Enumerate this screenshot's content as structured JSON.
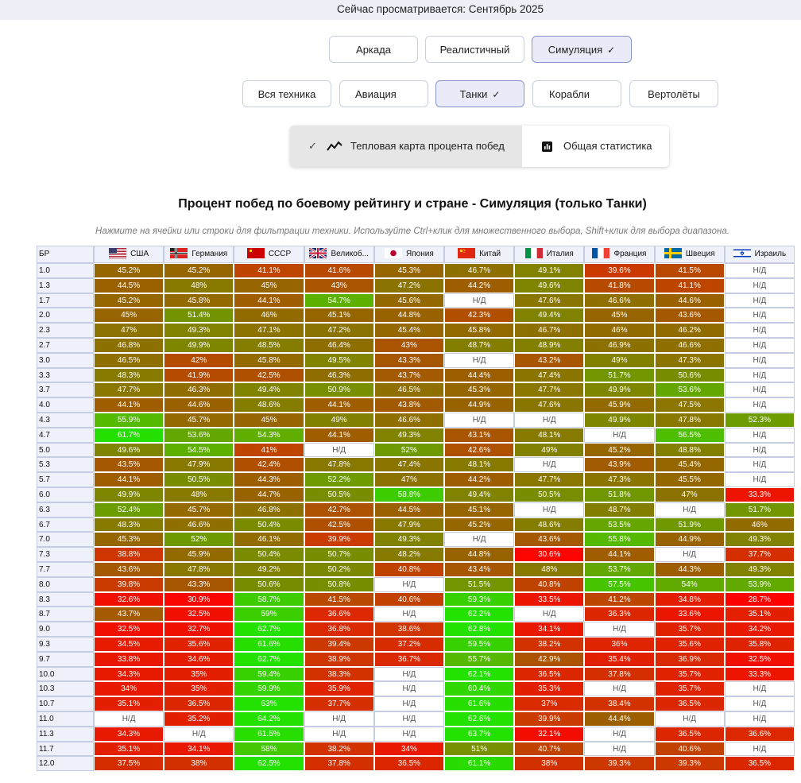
{
  "header": {
    "viewing_text": "Сейчас просматривается: Сентябрь 2025"
  },
  "modes": [
    {
      "label": "Аркада",
      "selected": false
    },
    {
      "label": "Реалистичный",
      "selected": false
    },
    {
      "label": "Симуляция",
      "selected": true
    }
  ],
  "categories": [
    {
      "label": "Вся техника",
      "selected": false
    },
    {
      "label": "Авиация",
      "selected": false
    },
    {
      "label": "Танки",
      "selected": true
    },
    {
      "label": "Корабли",
      "selected": false
    },
    {
      "label": "Вертолёты",
      "selected": false
    }
  ],
  "check_mark": "✓",
  "view_toggle": {
    "heatmap_label": "Тепловая карта процента побед",
    "stats_label": "Общая статистика"
  },
  "heatmap_title": "Процент побед по боевому рейтингу и стране - Симуляция (только Танки)",
  "heatmap_hint": "Нажмите на ячейки или строки для фильтрации техники. Используйте Ctrl+клик для множественного выбора, Shift+клик для выбора диапазона.",
  "chart_data": {
    "type": "heatmap",
    "title": "Процент побед по боевому рейтингу и стране - Симуляция (только Танки)",
    "row_header": "БР",
    "na_label": "Н/Д",
    "columns": [
      "США",
      "Германия",
      "СССР",
      "Великоб...",
      "Япония",
      "Китай",
      "Италия",
      "Франция",
      "Швеция",
      "Израиль"
    ],
    "flags": [
      "usa",
      "germany",
      "ussr",
      "uk",
      "japan",
      "china",
      "italy",
      "france",
      "sweden",
      "israel"
    ],
    "rows": [
      "1.0",
      "1.3",
      "1.7",
      "2.0",
      "2.3",
      "2.7",
      "3.0",
      "3.3",
      "3.7",
      "4.0",
      "4.3",
      "4.7",
      "5.0",
      "5.3",
      "5.7",
      "6.0",
      "6.3",
      "6.7",
      "7.0",
      "7.3",
      "7.7",
      "8.0",
      "8.3",
      "8.7",
      "9.0",
      "9.3",
      "9.7",
      "10.0",
      "10.3",
      "10.7",
      "11.0",
      "11.3",
      "11.7",
      "12.0"
    ],
    "values": [
      [
        45.2,
        45.2,
        41.1,
        41.6,
        45.3,
        46.7,
        49.1,
        39.6,
        41.5,
        null
      ],
      [
        44.5,
        48,
        45,
        43,
        47.2,
        44.2,
        49.6,
        41.8,
        41.1,
        null
      ],
      [
        45.2,
        45.8,
        44.1,
        54.7,
        45.6,
        null,
        47.6,
        46.6,
        44.6,
        null
      ],
      [
        45,
        51.4,
        46,
        45.1,
        44.8,
        42.3,
        49.4,
        45,
        43.6,
        null
      ],
      [
        47,
        49.3,
        47.1,
        47.2,
        45.4,
        45.8,
        46.7,
        46,
        46.2,
        null
      ],
      [
        46.8,
        49.9,
        48.5,
        46.4,
        43,
        48.7,
        48.9,
        46.9,
        46.6,
        null
      ],
      [
        46.5,
        42,
        45.8,
        49.5,
        43.3,
        null,
        43.2,
        49,
        47.3,
        null
      ],
      [
        48.3,
        41.9,
        42.5,
        46.3,
        43.7,
        44.4,
        47.4,
        51.7,
        50.6,
        null
      ],
      [
        47.7,
        46.3,
        49.4,
        50.9,
        46.5,
        45.3,
        47.7,
        49.9,
        53.6,
        null
      ],
      [
        44.1,
        44.6,
        48.6,
        44.1,
        43.8,
        44.9,
        47.6,
        45.9,
        47.5,
        null
      ],
      [
        55.9,
        45.7,
        45,
        49,
        46.6,
        null,
        null,
        49.9,
        47.8,
        52.3
      ],
      [
        61.7,
        53.6,
        54.3,
        44.1,
        49.3,
        43.1,
        48.1,
        null,
        56.5,
        null
      ],
      [
        49.6,
        54.5,
        41,
        null,
        52,
        42.6,
        49,
        45.2,
        48.8,
        null
      ],
      [
        43.5,
        47.9,
        42.4,
        47.8,
        47.4,
        48.1,
        null,
        43.9,
        45.4,
        null
      ],
      [
        44.1,
        50.5,
        44.3,
        52.2,
        47,
        44.2,
        47.7,
        47.3,
        45.5,
        null
      ],
      [
        49.9,
        48,
        44.7,
        50.5,
        58.8,
        49.4,
        50.5,
        51.8,
        47,
        33.3
      ],
      [
        52.4,
        45.7,
        46.8,
        42.7,
        44.5,
        45.1,
        null,
        48.7,
        null,
        51.7
      ],
      [
        48.3,
        46.6,
        50.4,
        42.5,
        47.9,
        45.2,
        48.6,
        53.5,
        51.9,
        46
      ],
      [
        45.3,
        52,
        46.1,
        39.9,
        49.3,
        null,
        43.6,
        55.8,
        44.9,
        49.3
      ],
      [
        38.8,
        45.9,
        50.4,
        50.7,
        48.2,
        44.8,
        30.6,
        44.1,
        null,
        37.7
      ],
      [
        43.6,
        47.8,
        49.2,
        50.2,
        40.8,
        43.4,
        48,
        53.7,
        44.3,
        49.3
      ],
      [
        39.8,
        43.3,
        50.6,
        50.8,
        null,
        51.5,
        40.8,
        57.5,
        54,
        53.9
      ],
      [
        32.6,
        30.9,
        58.7,
        41.5,
        40.6,
        59.3,
        33.5,
        41.2,
        34.8,
        28.7
      ],
      [
        43.7,
        32.5,
        59,
        36.6,
        null,
        62.2,
        null,
        36.3,
        33.6,
        35.1
      ],
      [
        32.5,
        32.7,
        62.7,
        36.8,
        38.6,
        62.8,
        34.1,
        null,
        35.7,
        34.2
      ],
      [
        34.5,
        35.6,
        61.6,
        39.4,
        37.2,
        59.5,
        38.2,
        36,
        35.6,
        35.8
      ],
      [
        33.8,
        34.6,
        62.7,
        38.9,
        36.7,
        55.7,
        42.9,
        35.4,
        36.9,
        32.5
      ],
      [
        34.3,
        35,
        59.4,
        38.3,
        null,
        62.1,
        36.5,
        37.8,
        35.7,
        33.3
      ],
      [
        34,
        35,
        59.9,
        35.9,
        null,
        60.4,
        35.3,
        null,
        35.7,
        null
      ],
      [
        35.1,
        36.5,
        63,
        37.7,
        null,
        61.6,
        37,
        38.4,
        36.5,
        null
      ],
      [
        null,
        35.2,
        64.2,
        null,
        null,
        62.6,
        39.9,
        44.4,
        null,
        null
      ],
      [
        34.3,
        null,
        61.5,
        null,
        null,
        63.7,
        32.1,
        null,
        36.5,
        36.6
      ],
      [
        35.1,
        34.1,
        58,
        38.2,
        34,
        51,
        40.7,
        null,
        40.6,
        null
      ],
      [
        37.5,
        38,
        62.5,
        37.8,
        36.5,
        61.1,
        38,
        39.3,
        39.3,
        36.5
      ]
    ],
    "color_scale": {
      "low": "#ff0000",
      "mid": "#8a8a00",
      "high": "#22dd00",
      "na": "#ffffff"
    }
  }
}
